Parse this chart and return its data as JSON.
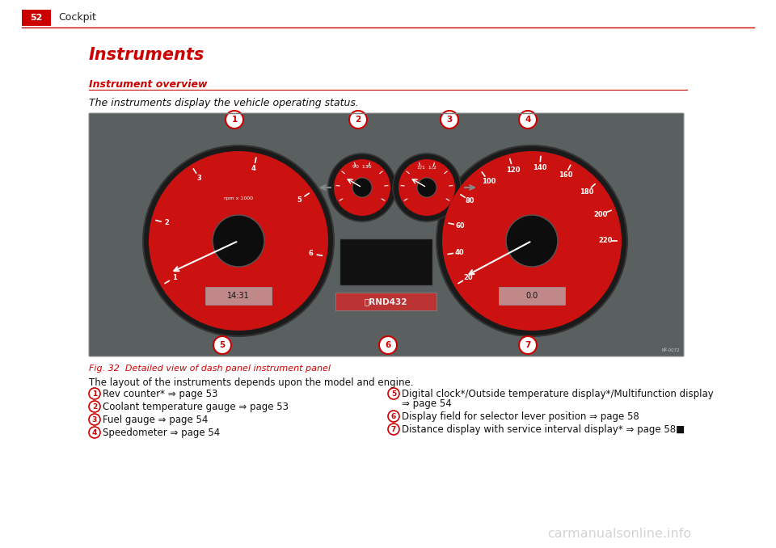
{
  "page_bg": "#ffffff",
  "page_num": "52",
  "page_num_bg": "#cc0000",
  "page_num_color": "#ffffff",
  "header_text": "Cockpit",
  "header_line_color": "#cc0000",
  "title": "Instruments",
  "title_color": "#cc0000",
  "subtitle": "Instrument overview",
  "subtitle_color": "#cc0000",
  "subtitle_line_color": "#cc0000",
  "italic_text": "The instruments display the vehicle operating status.",
  "fig_caption": "Fig. 32  Detailed view of dash panel instrument panel",
  "fig_caption_color": "#cc0000",
  "layout_text": "The layout of the instruments depends upon the model and engine.",
  "left_items": [
    {
      "num": "1",
      "text": "Rev counter* ⇒ page 53"
    },
    {
      "num": "2",
      "text": "Coolant temperature gauge ⇒ page 53"
    },
    {
      "num": "3",
      "text": "Fuel gauge ⇒ page 54"
    },
    {
      "num": "4",
      "text": "Speedometer ⇒ page 54"
    }
  ],
  "right_items": [
    {
      "num": "5",
      "text": "Digital clock*/Outside temperature display*/Multifunction display\n⇒ page 54"
    },
    {
      "num": "6",
      "text": "Display field for selector lever position ⇒ page 58"
    },
    {
      "num": "7",
      "text": "Distance display with service interval display* ⇒ page 58■"
    }
  ],
  "watermark": "carmanualsonline.info",
  "watermark_color": "#b0b0b0",
  "circle_color": "#cc0000",
  "dash_bg": "#5a6060",
  "gauge_outer": "#1a1a1a",
  "gauge_face": "#cc1111",
  "gauge_inner": "#0d0d0d",
  "display_bg": "#c08888"
}
